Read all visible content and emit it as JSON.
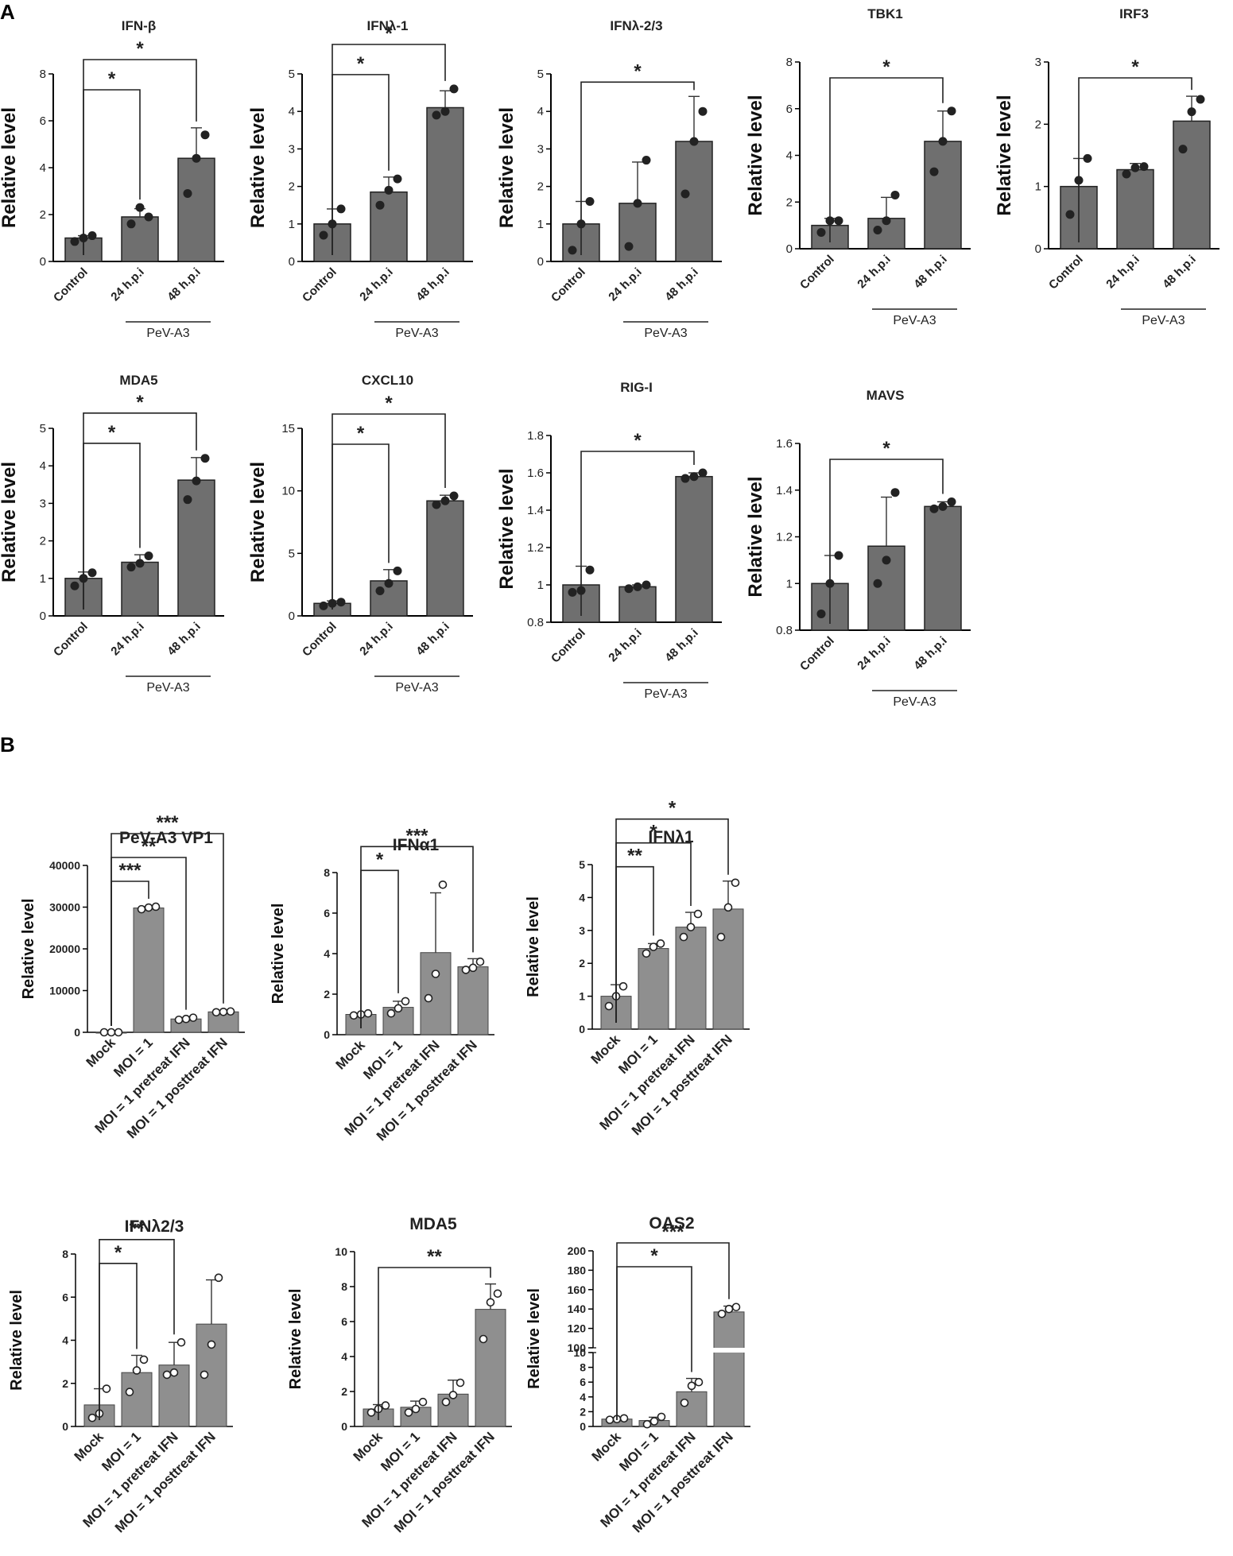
{
  "panel_labels": {
    "a": "A",
    "b": "B"
  },
  "colors": {
    "bar_A": "#6f6f6f",
    "bar_B": "#8f8f8f",
    "axis": "#000000",
    "dot_A": "#222222"
  },
  "chart_data": [
    {
      "id": "ifnb",
      "type": "bar",
      "title": "IFN-β",
      "ylabel": "Relative level",
      "ylim": [
        0,
        8
      ],
      "yticks": [
        0,
        2,
        4,
        6,
        8
      ],
      "categories": [
        "Control",
        "24 h.p.i",
        "48 h.p.i"
      ],
      "group_label": "PeV-A3",
      "values": [
        1.0,
        1.9,
        4.4
      ],
      "errors": [
        0.1,
        0.35,
        1.3
      ],
      "points": [
        [
          0.85,
          1.0,
          1.1
        ],
        [
          1.6,
          2.3,
          1.9
        ],
        [
          2.9,
          4.4,
          5.4
        ]
      ],
      "significance": [
        {
          "from": 0,
          "to": 1,
          "label": "*"
        },
        {
          "from": 0,
          "to": 2,
          "label": "*"
        }
      ]
    },
    {
      "id": "ifnl1",
      "type": "bar",
      "title": "IFNλ-1",
      "ylabel": "Relative level",
      "ylim": [
        0,
        5
      ],
      "yticks": [
        0,
        1,
        2,
        3,
        4,
        5
      ],
      "categories": [
        "Control",
        "24 h.p.i",
        "48 h.p.i"
      ],
      "group_label": "PeV-A3",
      "values": [
        1.0,
        1.85,
        4.1
      ],
      "errors": [
        0.4,
        0.4,
        0.45
      ],
      "points": [
        [
          0.7,
          1.0,
          1.4
        ],
        [
          1.5,
          1.9,
          2.2
        ],
        [
          3.9,
          4.0,
          4.6
        ]
      ],
      "significance": [
        {
          "from": 0,
          "to": 1,
          "label": "*"
        },
        {
          "from": 0,
          "to": 2,
          "label": "*"
        }
      ]
    },
    {
      "id": "ifnl23",
      "type": "bar",
      "title": "IFNλ-2/3",
      "ylabel": "Relative level",
      "ylim": [
        0,
        5
      ],
      "yticks": [
        0,
        1,
        2,
        3,
        4,
        5
      ],
      "categories": [
        "Control",
        "24 h.p.i",
        "48 h.p.i"
      ],
      "group_label": "PeV-A3",
      "values": [
        1.0,
        1.55,
        3.2
      ],
      "errors": [
        0.6,
        1.1,
        1.2
      ],
      "points": [
        [
          0.3,
          1.0,
          1.6
        ],
        [
          0.4,
          1.55,
          2.7
        ],
        [
          1.8,
          3.2,
          4.0
        ]
      ],
      "significance": [
        {
          "from": 0,
          "to": 2,
          "label": "*"
        }
      ]
    },
    {
      "id": "tbk1",
      "type": "bar",
      "title": "TBK1",
      "ylabel": "Relative level",
      "ylim": [
        0,
        8
      ],
      "yticks": [
        0,
        2,
        4,
        6,
        8
      ],
      "categories": [
        "Control",
        "24 h.p.i",
        "48 h.p.i"
      ],
      "group_label": "PeV-A3",
      "values": [
        1.0,
        1.3,
        4.6
      ],
      "errors": [
        0.3,
        0.9,
        1.3
      ],
      "points": [
        [
          0.7,
          1.2,
          1.2
        ],
        [
          0.8,
          1.2,
          2.3
        ],
        [
          3.3,
          4.6,
          5.9
        ]
      ],
      "significance": [
        {
          "from": 0,
          "to": 2,
          "label": "*"
        }
      ]
    },
    {
      "id": "irf3",
      "type": "bar",
      "title": "IRF3",
      "ylabel": "Relative level",
      "ylim": [
        0,
        3
      ],
      "yticks": [
        0,
        1,
        2,
        3
      ],
      "categories": [
        "Control",
        "24 h.p.i",
        "48 h.p.i"
      ],
      "group_label": "PeV-A3",
      "values": [
        1.0,
        1.27,
        2.05
      ],
      "errors": [
        0.45,
        0.1,
        0.4
      ],
      "points": [
        [
          0.55,
          1.1,
          1.45
        ],
        [
          1.2,
          1.3,
          1.32
        ],
        [
          1.6,
          2.2,
          2.4
        ]
      ],
      "significance": [
        {
          "from": 0,
          "to": 2,
          "label": "*"
        }
      ]
    },
    {
      "id": "mda5a",
      "type": "bar",
      "title": "MDA5",
      "ylabel": "Relative level",
      "ylim": [
        0,
        5
      ],
      "yticks": [
        0,
        1,
        2,
        3,
        4,
        5
      ],
      "categories": [
        "Control",
        "24 h.p.i",
        "48 h.p.i"
      ],
      "group_label": "PeV-A3",
      "values": [
        1.0,
        1.43,
        3.62
      ],
      "errors": [
        0.17,
        0.2,
        0.6
      ],
      "points": [
        [
          0.8,
          1.0,
          1.15
        ],
        [
          1.3,
          1.4,
          1.6
        ],
        [
          3.1,
          3.6,
          4.2
        ]
      ],
      "significance": [
        {
          "from": 0,
          "to": 1,
          "label": "*"
        },
        {
          "from": 0,
          "to": 2,
          "label": "*"
        }
      ]
    },
    {
      "id": "cxcl10",
      "type": "bar",
      "title": "CXCL10",
      "ylabel": "Relative level",
      "ylim": [
        0,
        15
      ],
      "yticks": [
        0,
        5,
        10,
        15
      ],
      "categories": [
        "Control",
        "24 h.p.i",
        "48 h.p.i"
      ],
      "group_label": "PeV-A3",
      "values": [
        1.0,
        2.8,
        9.2
      ],
      "errors": [
        0.2,
        0.9,
        0.45
      ],
      "points": [
        [
          0.8,
          1.0,
          1.1
        ],
        [
          2.0,
          2.6,
          3.6
        ],
        [
          8.9,
          9.2,
          9.6
        ]
      ],
      "significance": [
        {
          "from": 0,
          "to": 1,
          "label": "*"
        },
        {
          "from": 0,
          "to": 2,
          "label": "*"
        }
      ]
    },
    {
      "id": "rigi",
      "type": "bar",
      "title": "RIG-I",
      "ylabel": "Relative level",
      "ylim": [
        0.8,
        1.8
      ],
      "yticks": [
        0.8,
        1.0,
        1.2,
        1.4,
        1.6,
        1.8
      ],
      "categories": [
        "Control",
        "24 h.p.i",
        "48 h.p.i"
      ],
      "group_label": "PeV-A3",
      "values": [
        1.0,
        0.99,
        1.58
      ],
      "errors": [
        0.1,
        0.01,
        0.02
      ],
      "points": [
        [
          0.96,
          0.97,
          1.08
        ],
        [
          0.98,
          0.99,
          1.0
        ],
        [
          1.57,
          1.58,
          1.6
        ]
      ],
      "significance": [
        {
          "from": 0,
          "to": 2,
          "label": "*"
        }
      ]
    },
    {
      "id": "mavs",
      "type": "bar",
      "title": "MAVS",
      "ylabel": "Relative level",
      "ylim": [
        0.8,
        1.6
      ],
      "yticks": [
        0.8,
        1.0,
        1.2,
        1.4,
        1.6
      ],
      "categories": [
        "Control",
        "24 h.p.i",
        "48 h.p.i"
      ],
      "group_label": "PeV-A3",
      "values": [
        1.0,
        1.16,
        1.33
      ],
      "errors": [
        0.12,
        0.21,
        0.02
      ],
      "points": [
        [
          0.87,
          1.0,
          1.12
        ],
        [
          1.0,
          1.1,
          1.39
        ],
        [
          1.32,
          1.33,
          1.35
        ]
      ],
      "significance": [
        {
          "from": 0,
          "to": 2,
          "label": "*"
        }
      ]
    },
    {
      "id": "vp1",
      "type": "bar",
      "title": "PeV-A3 VP1",
      "ylabel": "Relative level",
      "ylim": [
        0,
        40000
      ],
      "yticks": [
        0,
        10000,
        20000,
        30000,
        40000
      ],
      "categories": [
        "Mock",
        "MOI = 1",
        "MOI = 1 pretreat IFN",
        "MOI = 1 posttreat IFN"
      ],
      "values": [
        1,
        29800,
        3200,
        4900
      ],
      "errors": [
        0,
        300,
        300,
        150
      ],
      "points": [
        [
          1,
          1,
          1
        ],
        [
          29500,
          29900,
          30100
        ],
        [
          3000,
          3200,
          3500
        ],
        [
          4800,
          4900,
          5000
        ]
      ],
      "significance": [
        {
          "from": 0,
          "to": 1,
          "label": "***"
        },
        {
          "from": 0,
          "to": 2,
          "label": "**"
        },
        {
          "from": 0,
          "to": 3,
          "label": "***"
        }
      ]
    },
    {
      "id": "ifna1",
      "type": "bar",
      "title": "IFNα1",
      "ylabel": "Relative level",
      "ylim": [
        0,
        8
      ],
      "yticks": [
        0,
        2,
        4,
        6,
        8
      ],
      "categories": [
        "Mock",
        "MOI = 1",
        "MOI = 1 pretreat IFN",
        "MOI = 1 posttreat IFN"
      ],
      "values": [
        1.0,
        1.35,
        4.05,
        3.35
      ],
      "errors": [
        0.05,
        0.3,
        2.95,
        0.4
      ],
      "points": [
        [
          0.95,
          1.0,
          1.05
        ],
        [
          1.05,
          1.3,
          1.65
        ],
        [
          1.8,
          3.0,
          7.4
        ],
        [
          3.2,
          3.3,
          3.6
        ]
      ],
      "significance": [
        {
          "from": 0,
          "to": 1,
          "label": "*"
        },
        {
          "from": 0,
          "to": 3,
          "label": "***"
        }
      ]
    },
    {
      "id": "ifnl1b",
      "type": "bar",
      "title": "IFNλ1",
      "ylabel": "Relative level",
      "ylim": [
        0,
        5
      ],
      "yticks": [
        0,
        1,
        2,
        3,
        4,
        5
      ],
      "categories": [
        "Mock",
        "MOI = 1",
        "MOI = 1 pretreat IFN",
        "MOI = 1 posttreat IFN"
      ],
      "values": [
        1.0,
        2.45,
        3.1,
        3.65
      ],
      "errors": [
        0.35,
        0.15,
        0.45,
        0.85
      ],
      "points": [
        [
          0.7,
          1.0,
          1.3
        ],
        [
          2.3,
          2.5,
          2.6
        ],
        [
          2.8,
          3.1,
          3.5
        ],
        [
          2.8,
          3.7,
          4.45
        ]
      ],
      "significance": [
        {
          "from": 0,
          "to": 1,
          "label": "**"
        },
        {
          "from": 0,
          "to": 2,
          "label": "*"
        },
        {
          "from": 0,
          "to": 3,
          "label": "*"
        }
      ]
    },
    {
      "id": "ifnl23b",
      "type": "bar",
      "title": "IFNλ2/3",
      "ylabel": "Relative level",
      "ylim": [
        0,
        8
      ],
      "yticks": [
        0,
        2,
        4,
        6,
        8
      ],
      "categories": [
        "Mock",
        "MOI = 1",
        "MOI = 1 pretreat IFN",
        "MOI = 1 posttreat IFN"
      ],
      "values": [
        1.0,
        2.5,
        2.85,
        4.75
      ],
      "errors": [
        0.75,
        0.8,
        1.05,
        2.05
      ],
      "points": [
        [
          0.4,
          0.6,
          1.75
        ],
        [
          1.6,
          2.6,
          3.1
        ],
        [
          2.4,
          2.5,
          3.9
        ],
        [
          2.4,
          3.8,
          6.9
        ]
      ],
      "significance": [
        {
          "from": 0,
          "to": 1,
          "label": "*"
        },
        {
          "from": 0,
          "to": 2,
          "label": "**"
        }
      ]
    },
    {
      "id": "mda5b",
      "type": "bar",
      "title": "MDA5",
      "ylabel": "Relative level",
      "ylim": [
        0,
        10
      ],
      "yticks": [
        0,
        2,
        4,
        6,
        8,
        10
      ],
      "categories": [
        "Mock",
        "MOI = 1",
        "MOI = 1 pretreat IFN",
        "MOI = 1 posttreat IFN"
      ],
      "values": [
        1.0,
        1.1,
        1.85,
        6.7
      ],
      "errors": [
        0.25,
        0.35,
        0.8,
        1.45
      ],
      "points": [
        [
          0.8,
          1.0,
          1.2
        ],
        [
          0.8,
          1.0,
          1.4
        ],
        [
          1.4,
          1.8,
          2.5
        ],
        [
          5.0,
          7.1,
          7.6
        ]
      ],
      "significance": [
        {
          "from": 0,
          "to": 3,
          "label": "**"
        }
      ]
    },
    {
      "id": "oas2",
      "type": "bar",
      "title": "OAS2",
      "ylabel": "Relative level",
      "y_axis_break": true,
      "ylim_lower": [
        0,
        10
      ],
      "yticks_lower": [
        0,
        2,
        4,
        6,
        8,
        10
      ],
      "ylim_upper": [
        100,
        200
      ],
      "yticks_upper": [
        100,
        120,
        140,
        160,
        180,
        200
      ],
      "categories": [
        "Mock",
        "MOI = 1",
        "MOI = 1 pretreat IFN",
        "MOI = 1 posttreat IFN"
      ],
      "values": [
        1.0,
        0.8,
        4.7,
        137
      ],
      "errors": [
        0.2,
        0.45,
        1.8,
        6
      ],
      "points": [
        [
          0.9,
          1.0,
          1.1
        ],
        [
          0.3,
          0.7,
          1.3
        ],
        [
          3.2,
          5.5,
          6.0
        ],
        [
          135,
          140,
          142
        ]
      ],
      "significance": [
        {
          "from": 0,
          "to": 2,
          "label": "*"
        },
        {
          "from": 0,
          "to": 3,
          "label": "***"
        }
      ]
    }
  ]
}
